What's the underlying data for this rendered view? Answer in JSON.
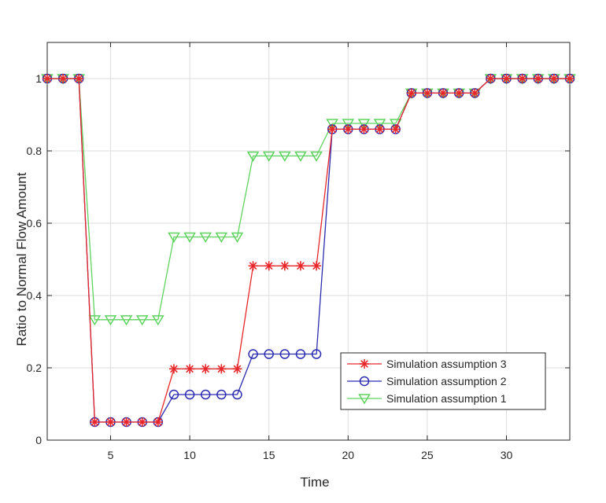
{
  "chart_data": {
    "type": "line",
    "title": "",
    "xlabel": "Time",
    "ylabel": "Ratio to Normal Flow Amount",
    "xlim": [
      1,
      34
    ],
    "ylim": [
      0,
      1.1
    ],
    "xticks": [
      5,
      10,
      15,
      20,
      25,
      30
    ],
    "yticks": [
      0,
      0.2,
      0.4,
      0.6,
      0.8,
      1
    ],
    "grid": true,
    "legend_position": "bottom-right",
    "x": [
      1,
      2,
      3,
      4,
      5,
      6,
      7,
      8,
      9,
      10,
      11,
      12,
      13,
      14,
      15,
      16,
      17,
      18,
      19,
      20,
      21,
      22,
      23,
      24,
      25,
      26,
      27,
      28,
      29,
      30,
      31,
      32,
      33,
      34
    ],
    "series": [
      {
        "name": "Simulation assumption 3",
        "color": "#e8262a",
        "marker": "asterisk",
        "values": [
          1,
          1,
          1,
          0.05,
          0.05,
          0.05,
          0.05,
          0.05,
          0.197,
          0.197,
          0.197,
          0.197,
          0.197,
          0.482,
          0.482,
          0.482,
          0.482,
          0.482,
          0.86,
          0.86,
          0.86,
          0.86,
          0.86,
          0.96,
          0.96,
          0.96,
          0.96,
          0.96,
          1,
          1,
          1,
          1,
          1,
          1
        ]
      },
      {
        "name": "Simulation assumption 2",
        "color": "#2b2bb0",
        "marker": "circle",
        "values": [
          1,
          1,
          1,
          0.05,
          0.05,
          0.05,
          0.05,
          0.05,
          0.126,
          0.126,
          0.126,
          0.126,
          0.126,
          0.238,
          0.238,
          0.238,
          0.238,
          0.238,
          0.86,
          0.86,
          0.86,
          0.86,
          0.86,
          0.96,
          0.96,
          0.96,
          0.96,
          0.96,
          1,
          1,
          1,
          1,
          1,
          1
        ]
      },
      {
        "name": "Simulation assumption 1",
        "color": "#5fd35f",
        "marker": "triangle-down",
        "values": [
          1,
          1,
          1,
          0.333,
          0.333,
          0.333,
          0.333,
          0.333,
          0.562,
          0.562,
          0.562,
          0.562,
          0.562,
          0.786,
          0.786,
          0.786,
          0.786,
          0.786,
          0.876,
          0.876,
          0.876,
          0.876,
          0.876,
          0.96,
          0.96,
          0.96,
          0.96,
          0.96,
          1,
          1,
          1,
          1,
          1,
          1
        ]
      }
    ]
  }
}
